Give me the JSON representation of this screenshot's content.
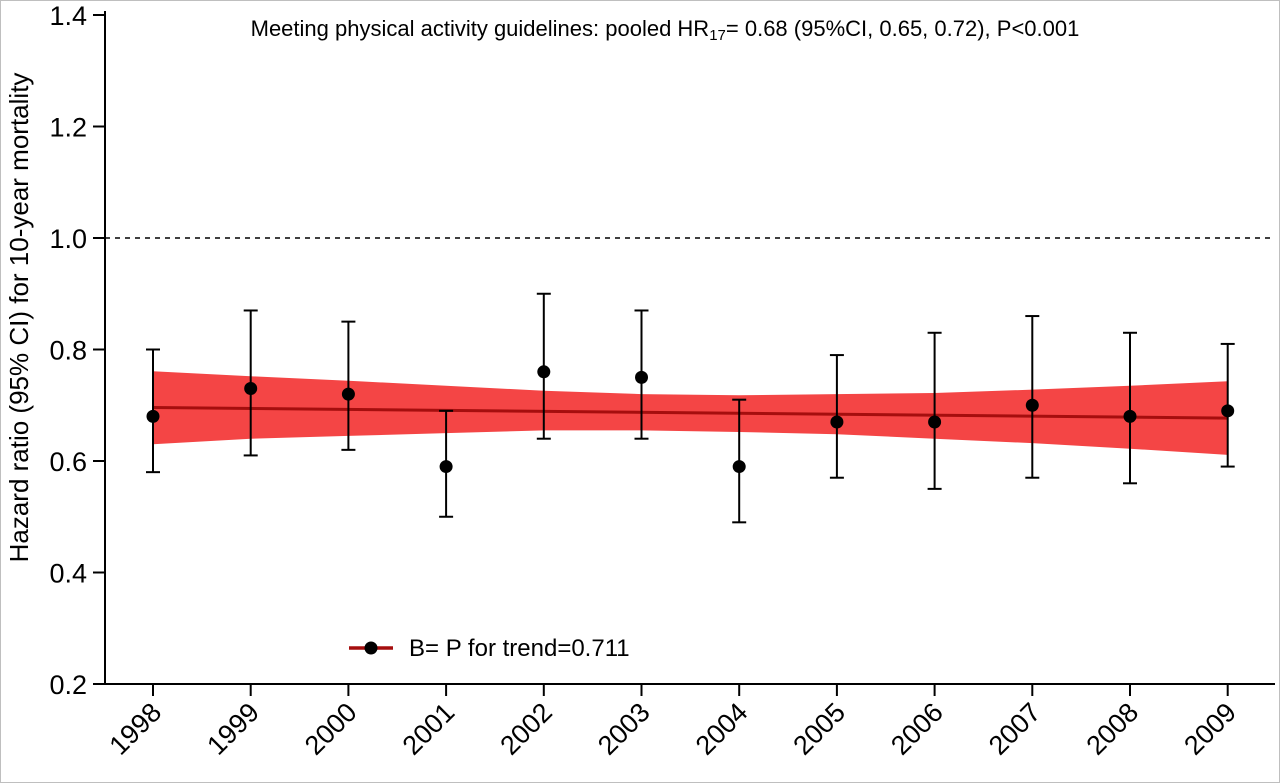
{
  "chart_data": {
    "type": "scatter",
    "title_parts": {
      "prefix": "Meeting physical activity guidelines: pooled HR",
      "subscript": "17",
      "suffix": "= 0.68 (95%CI, 0.65, 0.72), P<0.001"
    },
    "xlabel": "",
    "ylabel": "Hazard ratio (95% CI) for 10-year mortality",
    "ylim": [
      0.2,
      1.4
    ],
    "y_ticks": [
      "0.2",
      "0.4",
      "0.6",
      "0.8",
      "1.0",
      "1.2",
      "1.4"
    ],
    "reference_line": 1.0,
    "categories": [
      "1998",
      "1999",
      "2000",
      "2001",
      "2002",
      "2003",
      "2004",
      "2005",
      "2006",
      "2007",
      "2008",
      "2009"
    ],
    "series": [
      {
        "name": "B= P for trend=0.711",
        "values": [
          0.68,
          0.73,
          0.72,
          0.59,
          0.76,
          0.75,
          0.59,
          0.67,
          0.67,
          0.7,
          0.68,
          0.69
        ],
        "ci_lower": [
          0.58,
          0.61,
          0.62,
          0.5,
          0.64,
          0.64,
          0.49,
          0.57,
          0.55,
          0.57,
          0.56,
          0.59
        ],
        "ci_upper": [
          0.8,
          0.87,
          0.85,
          0.69,
          0.9,
          0.87,
          0.71,
          0.79,
          0.83,
          0.86,
          0.83,
          0.81
        ]
      }
    ],
    "trend": {
      "start": 0.696,
      "end": 0.677,
      "band_lower": [
        0.63,
        0.64,
        0.645,
        0.65,
        0.655,
        0.655,
        0.652,
        0.648,
        0.64,
        0.632,
        0.622,
        0.611
      ],
      "band_upper": [
        0.761,
        0.752,
        0.744,
        0.735,
        0.726,
        0.72,
        0.718,
        0.72,
        0.722,
        0.728,
        0.735,
        0.743
      ]
    },
    "legend": {
      "label": "B= P for trend=0.711",
      "position": "bottom-left"
    },
    "colors": {
      "band": "#f44545",
      "trend_line": "#a50e0e",
      "points": "#000000",
      "reference_line": "#000000"
    },
    "grid": false
  }
}
